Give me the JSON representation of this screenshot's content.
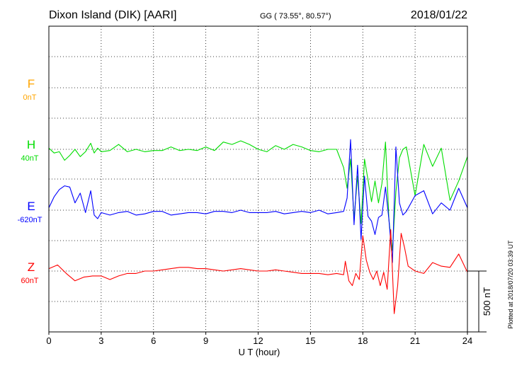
{
  "header": {
    "station": "Dixon Island (DIK)  [AARI]",
    "coords": "GG ( 73.55°,  80.57°)",
    "date": "2018/01/22"
  },
  "credit": "Plotted at 2018/07/20 03:39 UT",
  "colors": {
    "F": "#FFA500",
    "H": "#00DD00",
    "E": "#0000FF",
    "Z": "#FF0000",
    "grid": "#000000"
  },
  "chart_data": {
    "type": "line",
    "xlabel": "U T (hour)",
    "xlim": [
      0,
      24
    ],
    "xticks": [
      0,
      3,
      6,
      9,
      12,
      15,
      18,
      21,
      24
    ],
    "xtick_labels": [
      "0",
      "3",
      "6",
      "9",
      "12",
      "15",
      "18",
      "21",
      "24"
    ],
    "scale_bar": {
      "label": "500 nT",
      "value_nT": 500
    },
    "components": [
      {
        "name": "F",
        "offset_label": "0nT"
      },
      {
        "name": "H",
        "offset_label": "40nT"
      },
      {
        "name": "E",
        "offset_label": "-620nT"
      },
      {
        "name": "Z",
        "offset_label": "60nT"
      }
    ],
    "series": [
      {
        "name": "H",
        "x": [
          0,
          0.3,
          0.6,
          0.9,
          1.2,
          1.5,
          1.8,
          2.1,
          2.4,
          2.6,
          2.8,
          3.0,
          3.5,
          4.0,
          4.5,
          5.0,
          5.5,
          6.0,
          6.5,
          7.0,
          7.5,
          8.0,
          8.5,
          9.0,
          9.5,
          10.0,
          10.5,
          11.0,
          11.5,
          12.0,
          12.5,
          13.0,
          13.5,
          14.0,
          14.5,
          15.0,
          15.5,
          16.0,
          16.5,
          16.9,
          17.1,
          17.3,
          17.5,
          17.7,
          17.9,
          18.1,
          18.3,
          18.5,
          18.7,
          18.9,
          19.1,
          19.3,
          19.5,
          19.7,
          19.9,
          20.1,
          20.3,
          20.5,
          21.0,
          21.5,
          22.0,
          22.5,
          23.0,
          23.5,
          24.0
        ],
        "y": [
          10,
          -30,
          -20,
          -90,
          -50,
          0,
          -60,
          -20,
          50,
          -30,
          10,
          -20,
          -10,
          40,
          -20,
          0,
          -20,
          -10,
          -10,
          20,
          -10,
          0,
          -10,
          20,
          -10,
          60,
          40,
          70,
          40,
          0,
          -20,
          30,
          0,
          40,
          20,
          -10,
          -20,
          0,
          0,
          -150,
          -320,
          -80,
          -570,
          -220,
          -610,
          -80,
          -250,
          -430,
          -260,
          -440,
          -280,
          60,
          -580,
          -830,
          -350,
          -70,
          0,
          20,
          -380,
          40,
          -140,
          10,
          -420,
          -260,
          -60
        ]
      },
      {
        "name": "E",
        "x": [
          0,
          0.3,
          0.6,
          0.9,
          1.2,
          1.5,
          1.8,
          2.1,
          2.4,
          2.6,
          2.8,
          3.0,
          3.5,
          4.0,
          4.5,
          5.0,
          5.5,
          6.0,
          6.5,
          7.0,
          7.5,
          8.0,
          8.5,
          9.0,
          9.5,
          10.0,
          10.5,
          11.0,
          11.5,
          12.0,
          12.5,
          13.0,
          13.5,
          14.0,
          14.5,
          15.0,
          15.5,
          16.0,
          16.5,
          16.9,
          17.1,
          17.3,
          17.5,
          17.7,
          17.9,
          18.1,
          18.3,
          18.5,
          18.7,
          18.9,
          19.1,
          19.3,
          19.5,
          19.7,
          19.9,
          20.1,
          20.3,
          20.5,
          21.0,
          21.5,
          22.0,
          22.5,
          23.0,
          23.5,
          24.0
        ],
        "y": [
          20,
          110,
          170,
          200,
          190,
          60,
          140,
          -20,
          160,
          -40,
          -70,
          -20,
          -40,
          -20,
          -10,
          -40,
          -30,
          -10,
          -10,
          -40,
          -30,
          -20,
          -20,
          -30,
          -10,
          -10,
          -20,
          0,
          -20,
          -20,
          -20,
          -10,
          -30,
          -20,
          -10,
          -20,
          0,
          -30,
          -20,
          -10,
          100,
          580,
          -120,
          370,
          -240,
          280,
          -50,
          -90,
          -200,
          -60,
          -40,
          190,
          -80,
          -430,
          520,
          60,
          -40,
          -10,
          120,
          160,
          -30,
          60,
          0,
          180,
          20
        ]
      },
      {
        "name": "Z",
        "x": [
          0,
          0.5,
          1.0,
          1.5,
          2.0,
          2.5,
          3.0,
          3.5,
          4.0,
          4.5,
          5.0,
          5.5,
          6.0,
          6.5,
          7.0,
          7.5,
          8.0,
          8.5,
          9.0,
          9.5,
          10.0,
          10.5,
          11.0,
          11.5,
          12.0,
          12.5,
          13.0,
          13.5,
          14.0,
          14.5,
          15.0,
          15.5,
          16.0,
          16.5,
          16.9,
          17.0,
          17.2,
          17.4,
          17.6,
          17.8,
          18.0,
          18.2,
          18.4,
          18.6,
          18.8,
          19.0,
          19.2,
          19.4,
          19.6,
          19.8,
          20.0,
          20.2,
          20.4,
          20.6,
          21.0,
          21.5,
          22.0,
          22.5,
          23.0,
          23.5,
          24.0
        ],
        "y": [
          20,
          50,
          -20,
          -80,
          -50,
          -40,
          -40,
          -70,
          -40,
          -20,
          -20,
          0,
          0,
          10,
          20,
          30,
          30,
          20,
          20,
          10,
          0,
          10,
          20,
          10,
          0,
          0,
          10,
          0,
          -10,
          -20,
          -20,
          -20,
          -30,
          -20,
          -30,
          80,
          -80,
          -120,
          -20,
          -70,
          290,
          90,
          -10,
          -70,
          0,
          -120,
          -10,
          -150,
          340,
          -350,
          -120,
          310,
          190,
          40,
          0,
          -20,
          70,
          40,
          30,
          140,
          -10
        ]
      }
    ]
  }
}
